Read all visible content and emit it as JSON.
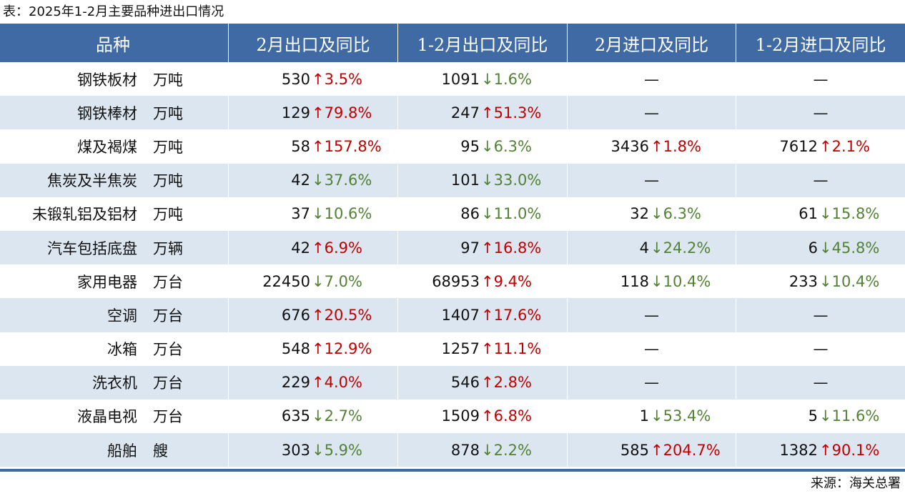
{
  "caption": "表：2025年1-2月主要品种进出口情况",
  "headers": [
    "品种",
    "2月出口及同比",
    "1-2月出口及同比",
    "2月进口及同比",
    "1-2月进口及同比"
  ],
  "rows": [
    {
      "name": "钢铁板材",
      "unit": "万吨",
      "exp_feb": {
        "num": "530",
        "arrow": "↑",
        "pct": "3.5%",
        "dir": "up"
      },
      "exp_ytd": {
        "num": "1091",
        "arrow": "↓",
        "pct": "1.6%",
        "dir": "down"
      },
      "imp_feb": {
        "dash": "—"
      },
      "imp_ytd": {
        "dash": "—"
      }
    },
    {
      "name": "钢铁棒材",
      "unit": "万吨",
      "exp_feb": {
        "num": "129",
        "arrow": "↑",
        "pct": "79.8%",
        "dir": "up"
      },
      "exp_ytd": {
        "num": "247",
        "arrow": "↑",
        "pct": "51.3%",
        "dir": "up"
      },
      "imp_feb": {
        "dash": "—"
      },
      "imp_ytd": {
        "dash": "—"
      }
    },
    {
      "name": "煤及褐煤",
      "unit": "万吨",
      "exp_feb": {
        "num": "58",
        "arrow": "↑",
        "pct": "157.8%",
        "dir": "up"
      },
      "exp_ytd": {
        "num": "95",
        "arrow": "↓",
        "pct": "6.3%",
        "dir": "down"
      },
      "imp_feb": {
        "num": "3436",
        "arrow": "↑",
        "pct": "1.8%",
        "dir": "up"
      },
      "imp_ytd": {
        "num": "7612",
        "arrow": "↑",
        "pct": "2.1%",
        "dir": "up"
      }
    },
    {
      "name": "焦炭及半焦炭",
      "unit": "万吨",
      "exp_feb": {
        "num": "42",
        "arrow": "↓",
        "pct": "37.6%",
        "dir": "down"
      },
      "exp_ytd": {
        "num": "101",
        "arrow": "↓",
        "pct": "33.0%",
        "dir": "down"
      },
      "imp_feb": {
        "dash": "—"
      },
      "imp_ytd": {
        "dash": "—"
      }
    },
    {
      "name": "未锻轧铝及铝材",
      "unit": "万吨",
      "exp_feb": {
        "num": "37",
        "arrow": "↓",
        "pct": "10.6%",
        "dir": "down"
      },
      "exp_ytd": {
        "num": "86",
        "arrow": "↓",
        "pct": "11.0%",
        "dir": "down"
      },
      "imp_feb": {
        "num": "32",
        "arrow": "↓",
        "pct": "6.3%",
        "dir": "down"
      },
      "imp_ytd": {
        "num": "61",
        "arrow": "↓",
        "pct": "15.8%",
        "dir": "down"
      }
    },
    {
      "name": "汽车包括底盘",
      "unit": "万辆",
      "exp_feb": {
        "num": "42",
        "arrow": "↑",
        "pct": "6.9%",
        "dir": "up"
      },
      "exp_ytd": {
        "num": "97",
        "arrow": "↑",
        "pct": "16.8%",
        "dir": "up"
      },
      "imp_feb": {
        "num": "4",
        "arrow": "↓",
        "pct": "24.2%",
        "dir": "down"
      },
      "imp_ytd": {
        "num": "6",
        "arrow": "↓",
        "pct": "45.8%",
        "dir": "down"
      }
    },
    {
      "name": "家用电器",
      "unit": "万台",
      "exp_feb": {
        "num": "22450",
        "arrow": "↓",
        "pct": "7.0%",
        "dir": "down"
      },
      "exp_ytd": {
        "num": "68953",
        "arrow": "↑",
        "pct": "9.4%",
        "dir": "up"
      },
      "imp_feb": {
        "num": "118",
        "arrow": "↓",
        "pct": "10.4%",
        "dir": "down"
      },
      "imp_ytd": {
        "num": "233",
        "arrow": "↓",
        "pct": "10.4%",
        "dir": "down"
      }
    },
    {
      "name": "空调",
      "unit": "万台",
      "exp_feb": {
        "num": "676",
        "arrow": "↑",
        "pct": "20.5%",
        "dir": "up"
      },
      "exp_ytd": {
        "num": "1407",
        "arrow": "↑",
        "pct": "17.6%",
        "dir": "up"
      },
      "imp_feb": {
        "dash": "—"
      },
      "imp_ytd": {
        "dash": "—"
      }
    },
    {
      "name": "冰箱",
      "unit": "万台",
      "exp_feb": {
        "num": "548",
        "arrow": "↑",
        "pct": "12.9%",
        "dir": "up"
      },
      "exp_ytd": {
        "num": "1257",
        "arrow": "↑",
        "pct": "11.1%",
        "dir": "up"
      },
      "imp_feb": {
        "dash": "—"
      },
      "imp_ytd": {
        "dash": "—"
      }
    },
    {
      "name": "洗衣机",
      "unit": "万台",
      "exp_feb": {
        "num": "229",
        "arrow": "↑",
        "pct": "4.0%",
        "dir": "up"
      },
      "exp_ytd": {
        "num": "546",
        "arrow": "↑",
        "pct": "2.8%",
        "dir": "up"
      },
      "imp_feb": {
        "dash": "—"
      },
      "imp_ytd": {
        "dash": "—"
      }
    },
    {
      "name": "液晶电视",
      "unit": "万台",
      "exp_feb": {
        "num": "635",
        "arrow": "↓",
        "pct": "2.7%",
        "dir": "down"
      },
      "exp_ytd": {
        "num": "1509",
        "arrow": "↑",
        "pct": "6.8%",
        "dir": "up"
      },
      "imp_feb": {
        "num": "1",
        "arrow": "↓",
        "pct": "53.4%",
        "dir": "down"
      },
      "imp_ytd": {
        "num": "5",
        "arrow": "↓",
        "pct": "11.6%",
        "dir": "down"
      }
    },
    {
      "name": "船舶",
      "unit": "艘",
      "exp_feb": {
        "num": "303",
        "arrow": "↓",
        "pct": "5.9%",
        "dir": "down"
      },
      "exp_ytd": {
        "num": "878",
        "arrow": "↓",
        "pct": "2.2%",
        "dir": "down"
      },
      "imp_feb": {
        "num": "585",
        "arrow": "↑",
        "pct": "204.7%",
        "dir": "up"
      },
      "imp_ytd": {
        "num": "1382",
        "arrow": "↑",
        "pct": "90.1%",
        "dir": "up"
      }
    }
  ],
  "source": "来源：海关总署",
  "colors": {
    "header_bg": "#3f6aa3",
    "alt_row": "#dce6f0",
    "up": "#c00000",
    "down": "#538135"
  }
}
